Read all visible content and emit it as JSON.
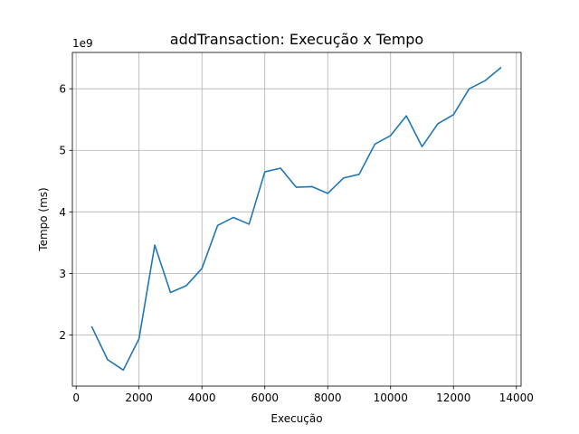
{
  "chart_data": {
    "type": "line",
    "title": "addTransaction: Execução x Tempo",
    "xlabel": "Execução",
    "ylabel": "Tempo (ms)",
    "y_offset_label": "1e9",
    "xlim": [
      -120,
      14150
    ],
    "ylim": [
      1170000000,
      6590000000
    ],
    "xticks": [
      0,
      2000,
      4000,
      6000,
      8000,
      10000,
      12000,
      14000
    ],
    "xtick_labels": [
      "0",
      "2000",
      "4000",
      "6000",
      "8000",
      "10000",
      "12000",
      "14000"
    ],
    "yticks": [
      2000000000,
      3000000000,
      4000000000,
      5000000000,
      6000000000
    ],
    "ytick_labels": [
      "2",
      "3",
      "4",
      "5",
      "6"
    ],
    "grid": true,
    "series": [
      {
        "color": "#1f77b4",
        "x": [
          500,
          1000,
          1500,
          2000,
          2500,
          3000,
          3500,
          4000,
          4500,
          5000,
          5500,
          6000,
          6500,
          7000,
          7500,
          8000,
          8500,
          9000,
          9500,
          10000,
          10500,
          11000,
          11500,
          12000,
          12500,
          13000,
          13500
        ],
        "y": [
          2130000000,
          1600000000,
          1430000000,
          1940000000,
          3460000000,
          2690000000,
          2800000000,
          3080000000,
          3780000000,
          3910000000,
          3800000000,
          4650000000,
          4710000000,
          4400000000,
          4410000000,
          4300000000,
          4550000000,
          4610000000,
          5100000000,
          5240000000,
          5560000000,
          5060000000,
          5430000000,
          5580000000,
          6000000000,
          6130000000,
          6340000000
        ]
      }
    ]
  }
}
